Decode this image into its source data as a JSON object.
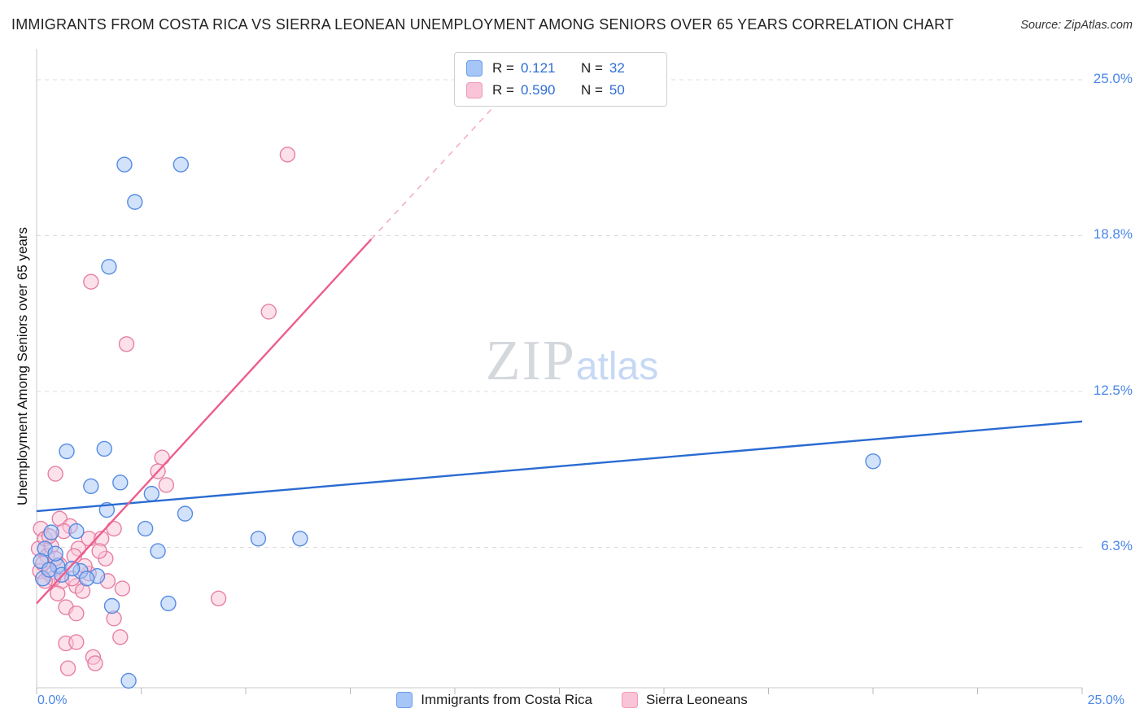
{
  "header": {
    "title": "IMMIGRANTS FROM COSTA RICA VS SIERRA LEONEAN UNEMPLOYMENT AMONG SENIORS OVER 65 YEARS CORRELATION CHART",
    "source": "Source: ZipAtlas.com"
  },
  "watermark": {
    "zip": "ZIP",
    "atlas": "atlas"
  },
  "legend_box": {
    "rows": [
      {
        "r_label": "R =",
        "r_value": "0.121",
        "n_label": "N =",
        "n_value": "32"
      },
      {
        "r_label": "R =",
        "r_value": "0.590",
        "n_label": "N =",
        "n_value": "50"
      }
    ]
  },
  "bottom_legend": {
    "items": [
      {
        "label": "Immigrants from Costa Rica"
      },
      {
        "label": "Sierra Leoneans"
      }
    ]
  },
  "x_axis": {
    "left_label": "0.0%",
    "right_label": "25.0%"
  },
  "chart_data": {
    "type": "scatter",
    "title": "Immigrants from Costa Rica vs Sierra Leonean Unemployment Among Seniors over 65 years",
    "xlabel": "Immigrants from Costa Rica (%)",
    "ylabel": "Unemployment Among Seniors over 65 years",
    "xlim": [
      0,
      25
    ],
    "ylim": [
      0,
      25.5
    ],
    "grid": true,
    "legend_position": "top-center",
    "x_tick_values": [
      0,
      2.5,
      5,
      7.5,
      10,
      12.5,
      15,
      17.5,
      20,
      22.5,
      25
    ],
    "y_ticks": [
      {
        "value": 25.0,
        "label": "25.0%"
      },
      {
        "value": 18.75,
        "label": "18.8%"
      },
      {
        "value": 12.5,
        "label": "12.5%"
      },
      {
        "value": 6.25,
        "label": "6.3%"
      }
    ],
    "series": [
      {
        "name": "Immigrants from Costa Rica",
        "r": 0.121,
        "n": 32,
        "fill": "#a5c6f7",
        "stroke": "#4d86e0",
        "points": [
          [
            2.1,
            21.6
          ],
          [
            3.45,
            21.6
          ],
          [
            2.35,
            20.1
          ],
          [
            1.73,
            17.5
          ],
          [
            0.72,
            10.1
          ],
          [
            1.62,
            10.2
          ],
          [
            1.3,
            8.7
          ],
          [
            2.0,
            8.85
          ],
          [
            2.75,
            8.4
          ],
          [
            1.68,
            7.75
          ],
          [
            3.55,
            7.6
          ],
          [
            2.6,
            7.0
          ],
          [
            0.95,
            6.9
          ],
          [
            0.35,
            6.85
          ],
          [
            5.3,
            6.6
          ],
          [
            6.3,
            6.6
          ],
          [
            2.9,
            6.1
          ],
          [
            0.2,
            6.2
          ],
          [
            0.1,
            5.7
          ],
          [
            0.5,
            5.5
          ],
          [
            1.05,
            5.3
          ],
          [
            1.45,
            5.1
          ],
          [
            0.15,
            5.0
          ],
          [
            0.3,
            5.35
          ],
          [
            0.6,
            5.15
          ],
          [
            0.85,
            5.4
          ],
          [
            1.2,
            5.0
          ],
          [
            3.15,
            4.0
          ],
          [
            1.8,
            3.9
          ],
          [
            2.2,
            0.9
          ],
          [
            20.0,
            9.7
          ],
          [
            0.45,
            6.0
          ]
        ]
      },
      {
        "name": "Sierra Leoneans",
        "r": 0.59,
        "n": 50,
        "fill": "#f9c4d7",
        "stroke": "#e6799f",
        "points": [
          [
            6.0,
            22.0
          ],
          [
            1.3,
            16.9
          ],
          [
            2.15,
            14.4
          ],
          [
            5.55,
            15.7
          ],
          [
            3.0,
            9.85
          ],
          [
            2.9,
            9.3
          ],
          [
            3.1,
            8.75
          ],
          [
            0.45,
            9.2
          ],
          [
            0.55,
            7.4
          ],
          [
            0.1,
            7.0
          ],
          [
            0.8,
            7.1
          ],
          [
            1.25,
            6.6
          ],
          [
            1.55,
            6.6
          ],
          [
            1.85,
            7.0
          ],
          [
            0.05,
            6.2
          ],
          [
            0.25,
            5.9
          ],
          [
            1.65,
            5.8
          ],
          [
            0.08,
            5.3
          ],
          [
            0.3,
            5.2
          ],
          [
            0.6,
            4.9
          ],
          [
            0.95,
            4.7
          ],
          [
            1.25,
            5.2
          ],
          [
            2.05,
            4.6
          ],
          [
            4.35,
            4.2
          ],
          [
            0.7,
            3.85
          ],
          [
            0.95,
            3.6
          ],
          [
            1.85,
            3.4
          ],
          [
            0.7,
            2.4
          ],
          [
            0.95,
            2.45
          ],
          [
            1.35,
            1.85
          ],
          [
            2.0,
            2.65
          ],
          [
            0.75,
            1.4
          ],
          [
            1.4,
            1.6
          ],
          [
            0.2,
            6.6
          ],
          [
            0.35,
            6.3
          ],
          [
            0.15,
            5.6
          ],
          [
            0.4,
            5.0
          ],
          [
            0.55,
            5.55
          ],
          [
            0.85,
            5.0
          ],
          [
            1.1,
            4.5
          ],
          [
            0.5,
            4.4
          ],
          [
            0.65,
            6.9
          ],
          [
            0.3,
            6.7
          ],
          [
            1.0,
            6.2
          ],
          [
            1.5,
            6.1
          ],
          [
            0.2,
            4.9
          ],
          [
            0.45,
            5.8
          ],
          [
            1.7,
            4.9
          ],
          [
            0.9,
            5.9
          ],
          [
            1.15,
            5.5
          ]
        ]
      }
    ],
    "trend_lines": [
      {
        "name": "costa-rica-trend",
        "color": "#2a6bd2",
        "width": 2.4,
        "start": [
          0,
          7.7
        ],
        "end": [
          25,
          11.3
        ]
      },
      {
        "name": "sierra-leone-trend",
        "color": "#ee5d8d",
        "width": 2.4,
        "start": [
          0,
          4.0
        ],
        "end": [
          8.0,
          18.6
        ],
        "extension": {
          "end": [
            11.8,
            25.5
          ],
          "dash": "7 7",
          "opacity": 0.5
        }
      }
    ]
  }
}
